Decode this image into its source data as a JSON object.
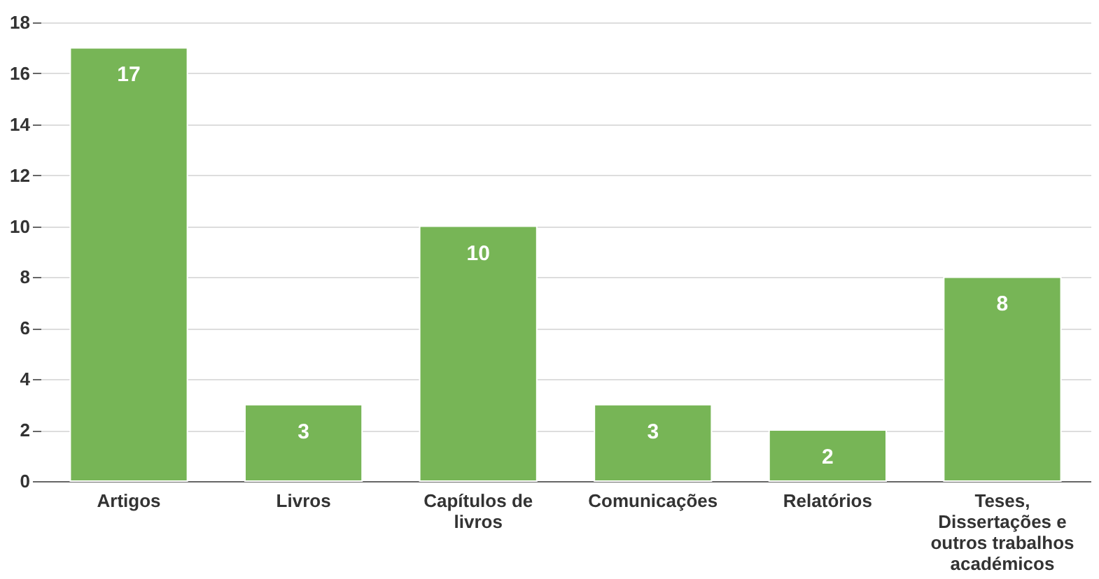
{
  "chart_data": {
    "type": "bar",
    "categories": [
      "Artigos",
      "Livros",
      "Capítulos de livros",
      "Comunicações",
      "Relatórios",
      "Teses, Dissertações e outros trabalhos académicos"
    ],
    "values": [
      17,
      3,
      10,
      3,
      2,
      8
    ],
    "color": "#77b556",
    "ylim": [
      0,
      18
    ],
    "yticks": [
      0,
      2,
      4,
      6,
      8,
      10,
      12,
      14,
      16,
      18
    ],
    "grid": "y",
    "data_labels": true
  }
}
